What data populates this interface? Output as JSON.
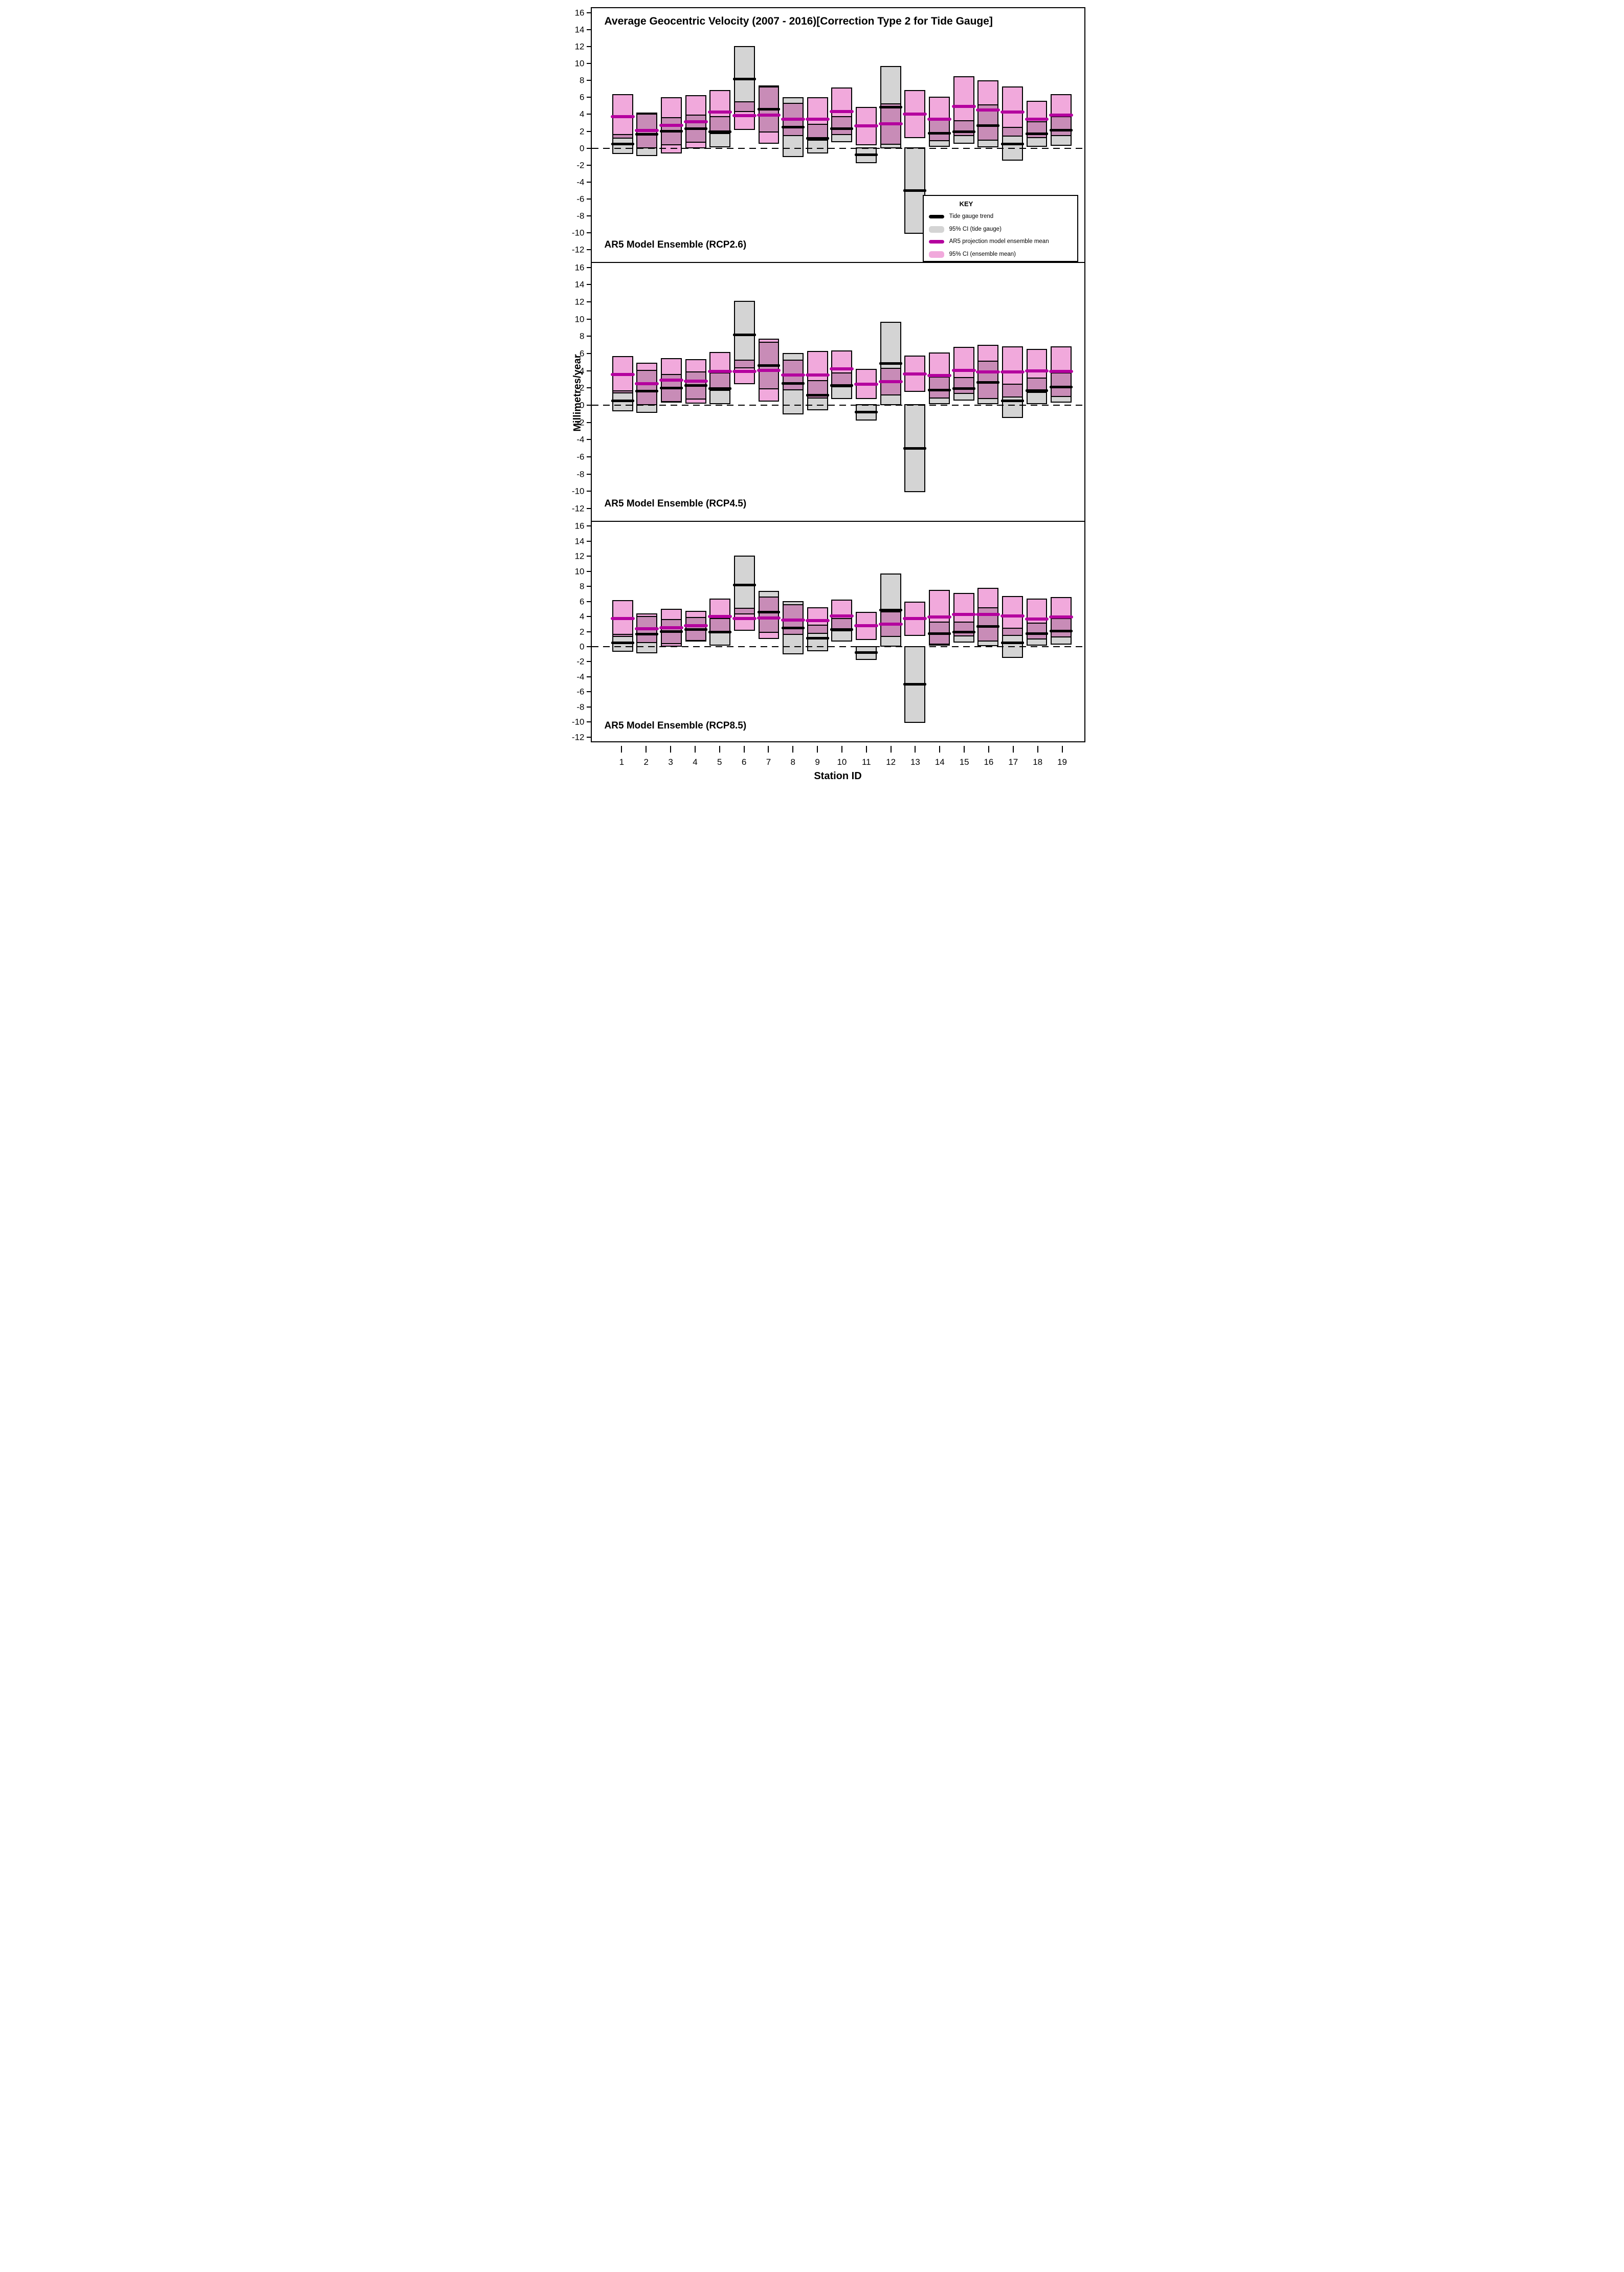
{
  "title": "Average Geocentric Velocity (2007 - 2016)[Correction Type 2 for Tide Gauge]",
  "y_axis_label": "Millimetres/year",
  "x_axis_label": "Station ID",
  "legend": {
    "header": "KEY",
    "items": [
      {
        "label": "Tide gauge trend",
        "swatch": "black-line"
      },
      {
        "label": "95% CI (tide gauge)",
        "swatch": "grey-box"
      },
      {
        "label": "AR5 projection model ensemble mean",
        "swatch": "magenta-line"
      },
      {
        "label": "95% CI (ensemble mean)",
        "swatch": "pink-box"
      }
    ]
  },
  "colors": {
    "tide_trend": "#000000",
    "tide_ci": "#D4D4D4",
    "ensemble_mean": "#B4009E",
    "ensemble_ci": "#F1A9DC",
    "overlap": "#C88CB7"
  },
  "chart_data": {
    "type": "bar",
    "title": "Average Geocentric Velocity (2007 - 2016)[Correction Type 2 for Tide Gauge]",
    "xlabel": "Station ID",
    "ylabel": "Millimetres/year",
    "y_ticks": [
      16,
      14,
      12,
      10,
      8,
      6,
      4,
      2,
      0,
      -2,
      -4,
      -6,
      -8,
      -10,
      -12
    ],
    "ylim_panels_1_2": [
      -13.45,
      16.55
    ],
    "ylim_panel_3": [
      -12.55,
      16.55
    ],
    "grid": false,
    "zero_reference_line": "dashed",
    "stations": [
      1,
      2,
      3,
      4,
      5,
      6,
      7,
      8,
      9,
      10,
      11,
      12,
      13,
      14,
      15,
      16,
      17,
      18,
      19
    ],
    "tide_gauge": {
      "trend": [
        0.5,
        1.65,
        2.0,
        2.3,
        1.95,
        8.2,
        4.6,
        2.5,
        1.15,
        2.3,
        -0.8,
        4.85,
        -5.0,
        1.75,
        1.95,
        2.65,
        0.5,
        1.7,
        2.1
      ],
      "ci_low": [
        -0.7,
        -0.9,
        0.35,
        0.65,
        0.1,
        4.3,
        1.85,
        -1.05,
        -0.6,
        0.7,
        -1.75,
        0.0,
        -10.1,
        0.15,
        0.55,
        0.1,
        -1.5,
        0.15,
        0.3
      ],
      "ci_high": [
        1.7,
        4.1,
        3.65,
        3.95,
        3.8,
        12.1,
        7.4,
        6.05,
        2.9,
        3.8,
        0.1,
        9.7,
        0.1,
        3.35,
        3.3,
        5.2,
        2.5,
        3.2,
        3.8
      ]
    },
    "panels": [
      {
        "label": "AR5 Model Ensemble (RCP2.6)",
        "ensemble_mean": [
          3.75,
          2.1,
          2.7,
          3.1,
          4.25,
          3.85,
          3.9,
          3.4,
          3.45,
          4.35,
          2.65,
          2.9,
          4.05,
          3.45,
          4.95,
          4.5,
          4.3,
          3.4,
          3.9
        ],
        "ci_low": [
          1.1,
          0.0,
          -0.6,
          0.0,
          1.7,
          2.15,
          0.5,
          1.45,
          0.9,
          1.55,
          0.35,
          0.4,
          1.2,
          0.85,
          1.4,
          0.9,
          1.35,
          1.2,
          1.4
        ],
        "ci_high": [
          6.4,
          4.2,
          6.05,
          6.25,
          6.85,
          5.55,
          7.3,
          5.35,
          6.0,
          7.15,
          4.9,
          5.3,
          6.9,
          6.1,
          8.5,
          8.05,
          7.3,
          5.6,
          6.4
        ]
      },
      {
        "label": "AR5 Model Ensemble (RCP4.5)",
        "ensemble_mean": [
          3.55,
          2.5,
          2.9,
          2.8,
          3.95,
          3.9,
          4.05,
          3.5,
          3.5,
          4.25,
          2.45,
          2.75,
          3.65,
          3.45,
          4.05,
          3.85,
          3.85,
          4.0,
          3.9
        ],
        "ci_low": [
          1.4,
          0.0,
          0.3,
          0.2,
          1.65,
          2.45,
          0.4,
          1.7,
          0.8,
          2.1,
          0.7,
          1.15,
          1.55,
          0.75,
          1.3,
          0.7,
          0.9,
          1.45,
          0.95
        ],
        "ci_high": [
          5.7,
          4.95,
          5.45,
          5.35,
          6.2,
          5.3,
          7.7,
          5.3,
          6.3,
          6.35,
          4.25,
          4.35,
          5.75,
          6.1,
          6.8,
          7.0,
          6.85,
          6.55,
          6.85
        ]
      },
      {
        "label": "AR5 Model Ensemble (RCP8.5)",
        "ensemble_mean": [
          3.75,
          2.4,
          2.5,
          2.75,
          4.0,
          3.75,
          3.8,
          3.55,
          3.45,
          4.1,
          2.75,
          3.0,
          3.7,
          3.95,
          4.25,
          4.25,
          4.05,
          3.65,
          3.95
        ],
        "ci_low": [
          1.3,
          0.45,
          0.0,
          0.75,
          1.8,
          2.1,
          1.0,
          1.55,
          1.7,
          2.0,
          0.85,
          1.3,
          1.45,
          0.3,
          1.35,
          0.65,
          1.45,
          0.95,
          1.25
        ],
        "ci_high": [
          6.2,
          4.4,
          5.0,
          4.75,
          6.4,
          5.15,
          6.65,
          5.6,
          5.2,
          6.25,
          4.6,
          4.65,
          5.95,
          7.55,
          7.15,
          7.8,
          6.7,
          6.4,
          6.6
        ]
      }
    ]
  }
}
